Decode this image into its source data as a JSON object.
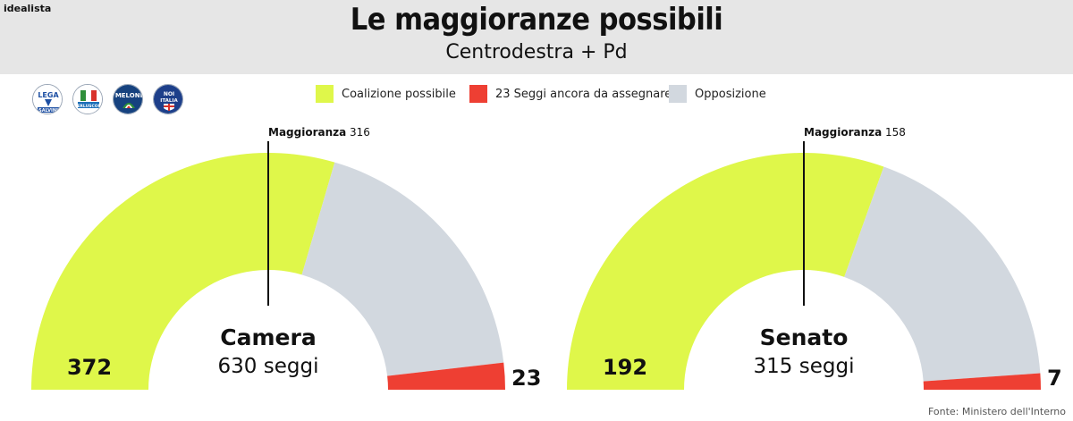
{
  "brand": "idealista",
  "title": "Le maggioranze possibili",
  "subtitle": "Centrodestra + Pd",
  "logos": [
    {
      "icon": "lega-salvini-logo",
      "text": "LEGA SALVINI",
      "bg": "#ffffff",
      "fg": "#1d4fa3"
    },
    {
      "icon": "forza-italia-berlusconi-logo",
      "text": "FORZA ITALIA BERLUSCONI",
      "bg": "#ffffff",
      "fg": "#1d6fb8"
    },
    {
      "icon": "fratelli-italia-meloni-logo",
      "text": "MELONI",
      "bg": "#16427f",
      "fg": "#ffffff"
    },
    {
      "icon": "noi-con-italia-logo",
      "text": "NOI ITALIA",
      "bg": "#1d3f8a",
      "fg": "#ffffff"
    }
  ],
  "legend": [
    {
      "label": "Coalizione possibile",
      "color": "#dff74a"
    },
    {
      "label": "23 Seggi ancora da assegnare",
      "color": "#ee3f33"
    },
    {
      "label": "Opposizione",
      "color": "#d2d8df"
    }
  ],
  "chart_data": [
    {
      "type": "semi-donut",
      "title": "Camera",
      "subtitle": "630 seggi",
      "total": 630,
      "majority_label": "Maggioranza",
      "majority_value": 316,
      "series": [
        {
          "name": "Coalizione possibile",
          "value": 372,
          "color": "#dff74a",
          "label": "372"
        },
        {
          "name": "Opposizione",
          "value": 235,
          "color": "#d2d8df",
          "label": ""
        },
        {
          "name": "Seggi ancora da assegnare",
          "value": 23,
          "color": "#ee3f33",
          "label": "23"
        }
      ]
    },
    {
      "type": "semi-donut",
      "title": "Senato",
      "subtitle": "315 seggi",
      "total": 315,
      "majority_label": "Maggioranza",
      "majority_value": 158,
      "series": [
        {
          "name": "Coalizione possibile",
          "value": 192,
          "color": "#dff74a",
          "label": "192"
        },
        {
          "name": "Opposizione",
          "value": 116,
          "color": "#d2d8df",
          "label": ""
        },
        {
          "name": "Seggi ancora da assegnare",
          "value": 7,
          "color": "#ee3f33",
          "label": "7"
        }
      ]
    }
  ],
  "source": "Fonte: Ministero dell'Interno"
}
